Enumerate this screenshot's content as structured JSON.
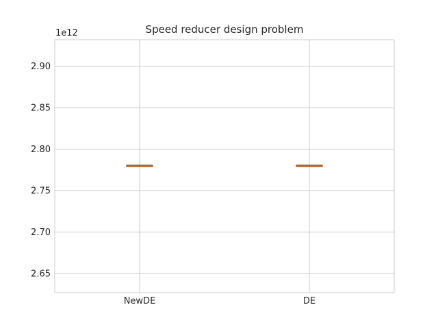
{
  "chart_data": {
    "type": "box",
    "title": "Speed reducer design problem",
    "offset_label": "1e12",
    "xlabel": "",
    "ylabel": "",
    "categories": [
      "NewDE",
      "DE"
    ],
    "boxes": [
      {
        "name": "NewDE",
        "min": 2.7797,
        "q1": 2.7798,
        "median": 2.7798,
        "q3": 2.7799,
        "max": 2.7799
      },
      {
        "name": "DE",
        "min": 2.7797,
        "q1": 2.7798,
        "median": 2.7798,
        "q3": 2.7799,
        "max": 2.7799
      }
    ],
    "ylim": [
      2.627,
      2.932
    ],
    "yticks": [
      2.65,
      2.7,
      2.75,
      2.8,
      2.85,
      2.9
    ],
    "ytick_labels": [
      "2.65",
      "2.70",
      "2.75",
      "2.80",
      "2.85",
      "2.90"
    ],
    "grid": true,
    "colors": {
      "grid": "#cccccc",
      "frame": "#cccccc",
      "box": "#333333",
      "median": "#ff7f0e",
      "text": "#262626"
    }
  }
}
